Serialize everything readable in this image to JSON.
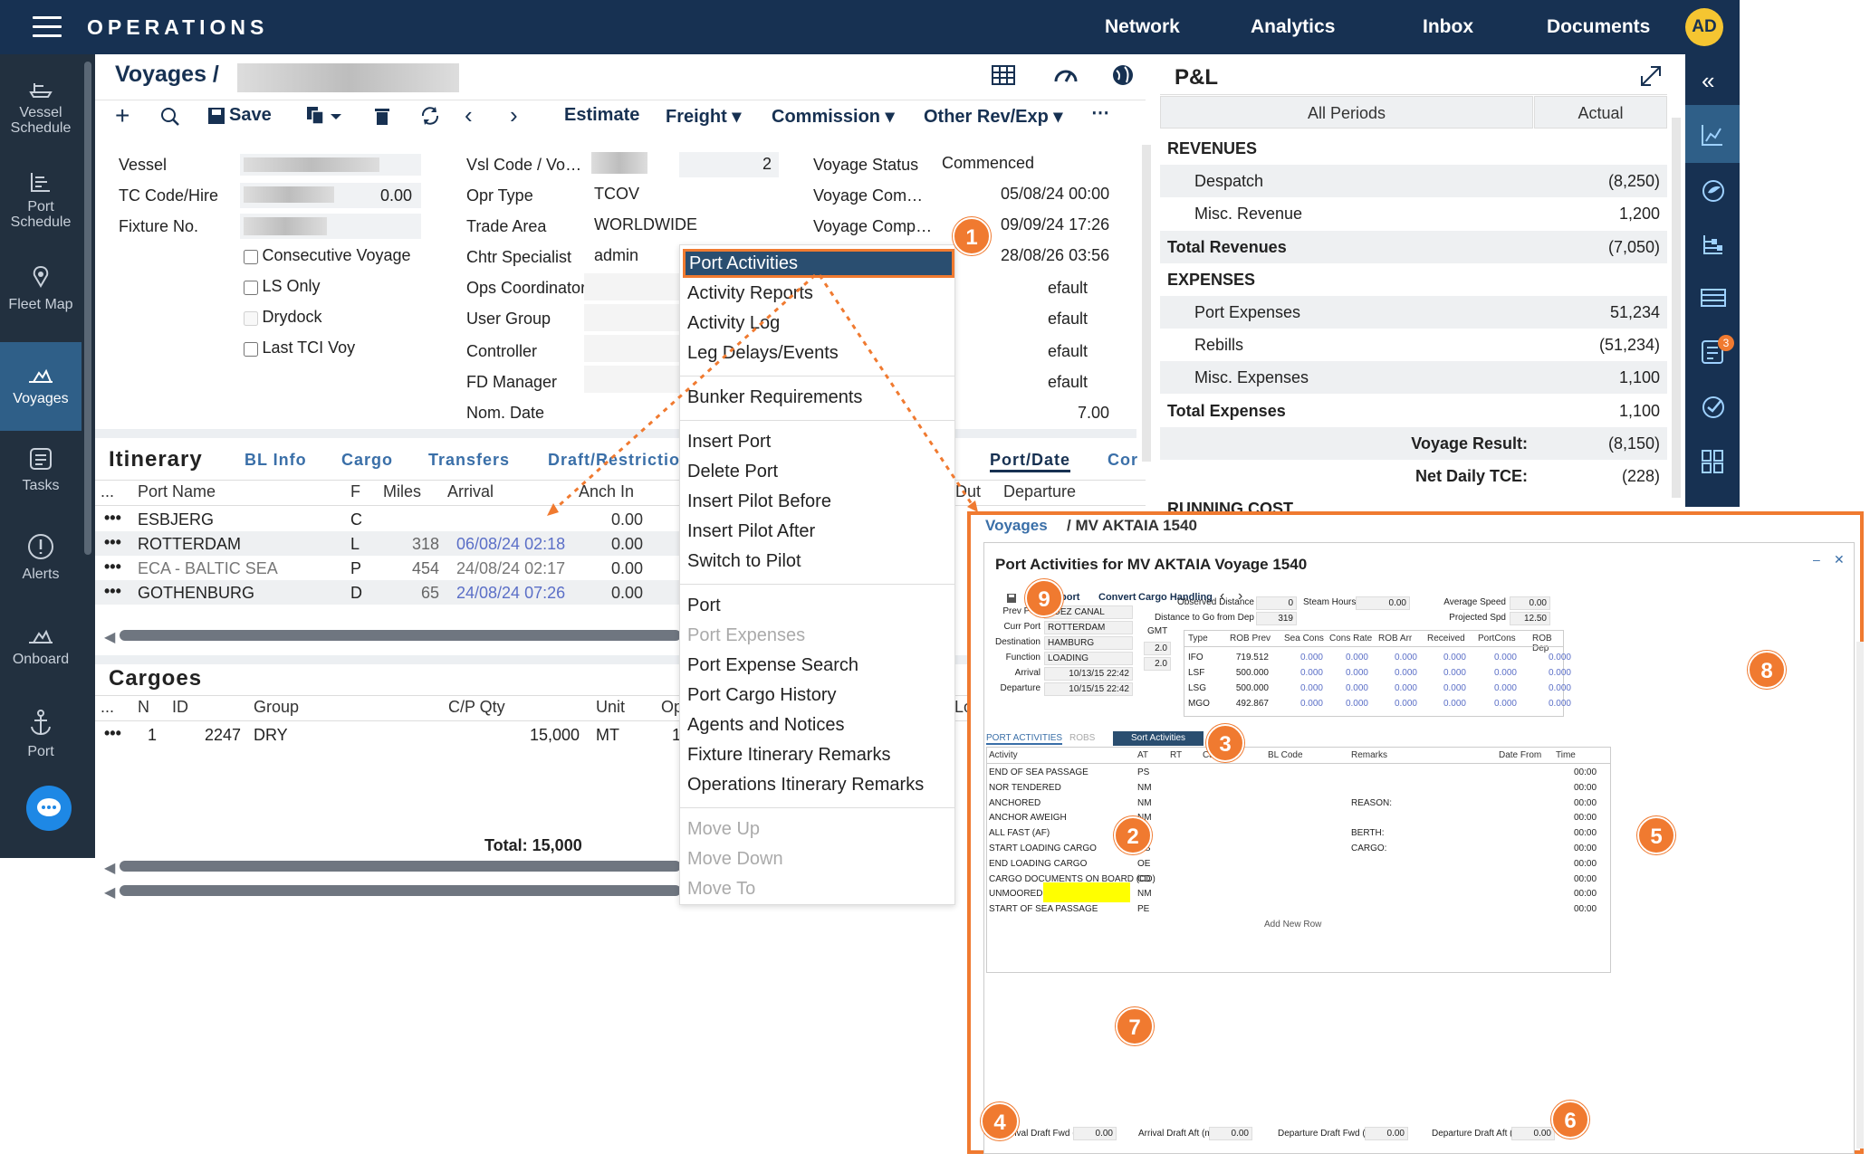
{
  "topbar": {
    "brand": "OPERATIONS",
    "nav": [
      "Network",
      "Analytics",
      "Inbox",
      "Documents"
    ],
    "avatar": "AD"
  },
  "leftnav": [
    "Vessel Schedule",
    "Port Schedule",
    "Fleet Map",
    "Voyages",
    "Tasks",
    "Alerts",
    "Onboard",
    "Port"
  ],
  "header": {
    "crumb": "Voyages /"
  },
  "toolbar": {
    "save": "Save",
    "estimate": "Estimate",
    "freight": "Freight",
    "commission": "Commission",
    "other": "Other Rev/Exp",
    "more": "⋯"
  },
  "form": {
    "col1": {
      "vessel": "Vessel",
      "tc": "TC Code/Hire",
      "tc_val": "0.00",
      "fixture": "Fixture No.",
      "checks": [
        "Consecutive Voyage",
        "LS Only",
        "Drydock",
        "Last TCI Voy"
      ]
    },
    "col2": {
      "labels": [
        "Vsl Code / Vo…",
        "Opr Type",
        "Trade Area",
        "Chtr Specialist",
        "Ops Coordinator",
        "User Group",
        "Controller",
        "FD Manager",
        "Nom. Date"
      ],
      "vslno": "2",
      "opr": "TCOV",
      "trade": "WORLDWIDE",
      "chtr": "admin"
    },
    "col3": {
      "labels": [
        "Voyage Status",
        "Voyage Com…",
        "Voyage Comp…"
      ],
      "status": "Commenced",
      "d1": "05/08/24 00:00",
      "d2": "09/09/24 17:26",
      "d3": "28/08/26 03:56",
      "defaults": [
        "efault",
        "efault",
        "efault",
        "efault"
      ],
      "seven": "7.00"
    }
  },
  "itin": {
    "title": "Itinerary",
    "tabs": [
      "BL Info",
      "Cargo",
      "Transfers",
      "Draft/Restrictio",
      "Port/Date",
      "Cor"
    ],
    "cols": [
      "...",
      "Port Name",
      "F",
      "Miles",
      "Arrival",
      "Anch In",
      "Dut",
      "Departure"
    ],
    "rows": [
      [
        "ESBJERG",
        "C",
        "",
        "",
        "0.00"
      ],
      [
        "ROTTERDAM",
        "L",
        "318",
        "06/08/24 02:18",
        "0.00"
      ],
      [
        "ECA - BALTIC SEA",
        "P",
        "454",
        "24/08/24 02:17",
        "0.00"
      ],
      [
        "GOTHENBURG",
        "D",
        "65",
        "24/08/24 07:26",
        "0.00"
      ]
    ]
  },
  "cargoes": {
    "title": "Cargoes",
    "cols": [
      "...",
      "N",
      "ID",
      "Group",
      "C/P Qty",
      "Unit",
      "Op",
      "Lo"
    ],
    "row": [
      "1",
      "2247",
      "DRY",
      "15,000",
      "MT",
      "1"
    ],
    "total": "Total: 15,000"
  },
  "menu": {
    "items": [
      "Port Activities",
      "Activity Reports",
      "Activity Log",
      "Leg Delays/Events",
      "Bunker Requirements",
      "Insert Port",
      "Delete Port",
      "Insert Pilot Before",
      "Insert Pilot After",
      "Switch to Pilot",
      "Port",
      "Port Expenses",
      "Port Expense Search",
      "Port Cargo History",
      "Agents and Notices",
      "Fixture Itinerary Remarks",
      "Operations Itinerary Remarks",
      "Move Up",
      "Move Down",
      "Move To"
    ]
  },
  "pl": {
    "title": "P&L",
    "periods": "All Periods",
    "actual": "Actual",
    "rows": [
      [
        "REVENUES",
        ""
      ],
      [
        "Despatch",
        "(8,250)"
      ],
      [
        "Misc. Revenue",
        "1,200"
      ],
      [
        "Total Revenues",
        "(7,050)"
      ],
      [
        "EXPENSES",
        ""
      ],
      [
        "Port Expenses",
        "51,234"
      ],
      [
        "Rebills",
        "(51,234)"
      ],
      [
        "Misc. Expenses",
        "1,100"
      ],
      [
        "Total Expenses",
        "1,100"
      ],
      [
        "Voyage Result:",
        "(8,150)"
      ],
      [
        "Net Daily TCE:",
        "(228)"
      ],
      [
        "RUNNING COST",
        ""
      ]
    ],
    "badge": "3"
  },
  "pa": {
    "crumb1": "Voyages",
    "crumb2": "/ MV AKTAIA 1540",
    "title": "Port Activities for MV AKTAIA Voyage 1540",
    "tools": [
      "Report",
      "Convert",
      "Cargo Handling"
    ],
    "info": {
      "labels": [
        "Prev Port",
        "Curr Port",
        "Destination",
        "Function",
        "Arrival",
        "Departure"
      ],
      "vals": [
        "SUEZ CANAL",
        "ROTTERDAM",
        "HAMBURG",
        "LOADING",
        "10/13/15 22:42",
        "10/15/15 22:42"
      ],
      "gmt": "GMT",
      "gmtvals": [
        "2.0",
        "2.0"
      ]
    },
    "dist": {
      "obs": "Observed Distance",
      "obs_v": "0",
      "togo": "Distance to Go from Dep",
      "togo_v": "319",
      "steam": "Steam Hours",
      "steam_v": "0.00",
      "avg": "Average Speed",
      "avg_v": "0.00",
      "proj": "Projected Spd",
      "proj_v": "12.50"
    },
    "bunker": {
      "cols": [
        "Type",
        "ROB Prev",
        "Sea Cons",
        "Cons Rate",
        "ROB Arr",
        "Received",
        "PortCons",
        "ROB Dep"
      ],
      "rows": [
        [
          "IFO",
          "719.512",
          "0.000",
          "0.000",
          "0.000",
          "0.000",
          "0.000",
          "0.000"
        ],
        [
          "LSF",
          "500.000",
          "0.000",
          "0.000",
          "0.000",
          "0.000",
          "0.000",
          "0.000"
        ],
        [
          "LSG",
          "500.000",
          "0.000",
          "0.000",
          "0.000",
          "0.000",
          "0.000",
          "0.000"
        ],
        [
          "MGO",
          "492.867",
          "0.000",
          "0.000",
          "0.000",
          "0.000",
          "0.000",
          "0.000"
        ]
      ]
    },
    "tabs": [
      "PORT ACTIVITIES",
      "ROBS"
    ],
    "sort": "Sort Activities",
    "cols": [
      "Activity",
      "AT",
      "RT",
      "Cargo",
      "BL Code",
      "Remarks",
      "Date From",
      "Time"
    ],
    "acts": [
      [
        "END OF SEA PASSAGE",
        "PS",
        ""
      ],
      [
        "NOR TENDERED",
        "NM",
        ""
      ],
      [
        "ANCHORED",
        "NM",
        "REASON:"
      ],
      [
        "ANCHOR AWEIGH",
        "NM",
        ""
      ],
      [
        "ALL FAST (AF)",
        "AF",
        "BERTH:"
      ],
      [
        "START LOADING CARGO",
        "OS",
        "CARGO:"
      ],
      [
        "END LOADING CARGO",
        "OE",
        ""
      ],
      [
        "CARGO DOCUMENTS ON BOARD (CD)",
        "CD",
        ""
      ],
      [
        "UNMOORED",
        "NM",
        ""
      ],
      [
        "START OF SEA PASSAGE",
        "PE",
        ""
      ]
    ],
    "time": "00:00",
    "addrow": "Add New Row",
    "drafts": [
      [
        "Arrival Draft Fwd (m)",
        "0.00"
      ],
      [
        "Arrival Draft Aft (m)",
        "0.00"
      ],
      [
        "Departure Draft Fwd (m)",
        "0.00"
      ],
      [
        "Departure Draft Aft (m)",
        "0.00"
      ]
    ]
  },
  "callouts": [
    "1",
    "2",
    "3",
    "4",
    "5",
    "6",
    "7",
    "8",
    "9"
  ]
}
